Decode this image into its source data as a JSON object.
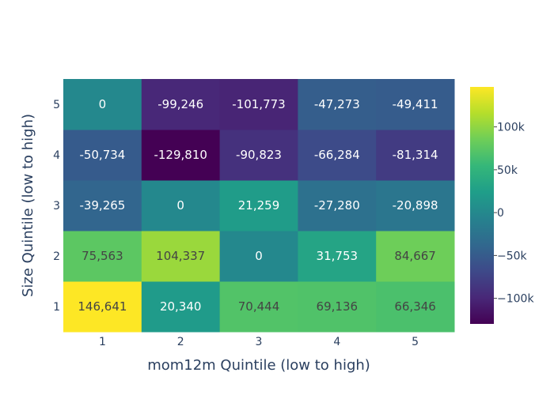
{
  "chart_data": {
    "type": "heatmap",
    "title": "",
    "xlabel": "mom12m Quintile (low to high)",
    "ylabel": "Size Quintile (low to high)",
    "x": [
      "1",
      "2",
      "3",
      "4",
      "5"
    ],
    "y": [
      "1",
      "2",
      "3",
      "4",
      "5"
    ],
    "z": [
      [
        146641,
        20340,
        70444,
        69136,
        66346
      ],
      [
        75563,
        104337,
        0,
        31753,
        84667
      ],
      [
        -39265,
        0,
        21259,
        -27280,
        -20898
      ],
      [
        -50734,
        -129810,
        -90823,
        -66284,
        -81314
      ],
      [
        0,
        -99246,
        -101773,
        -47273,
        -49411
      ]
    ],
    "cell_labels": [
      [
        "146,641",
        "20,340",
        "70,444",
        "69,136",
        "66,346"
      ],
      [
        "75,563",
        "104,337",
        "0",
        "31,753",
        "84,667"
      ],
      [
        "-39,265",
        "0",
        "21,259",
        "-27,280",
        "-20,898"
      ],
      [
        "-50,734",
        "-129,810",
        "-90,823",
        "-66,284",
        "-81,314"
      ],
      [
        "0",
        "-99,246",
        "-101,773",
        "-47,273",
        "-49,411"
      ]
    ],
    "zrange": [
      -129810,
      146641
    ],
    "colorscale": "Viridis",
    "colorbar_ticks": [
      {
        "value": 100000,
        "label": "100k"
      },
      {
        "value": 50000,
        "label": "50k"
      },
      {
        "value": 0,
        "label": "0"
      },
      {
        "value": -50000,
        "label": "−50k"
      },
      {
        "value": -100000,
        "label": "−100k"
      }
    ]
  }
}
